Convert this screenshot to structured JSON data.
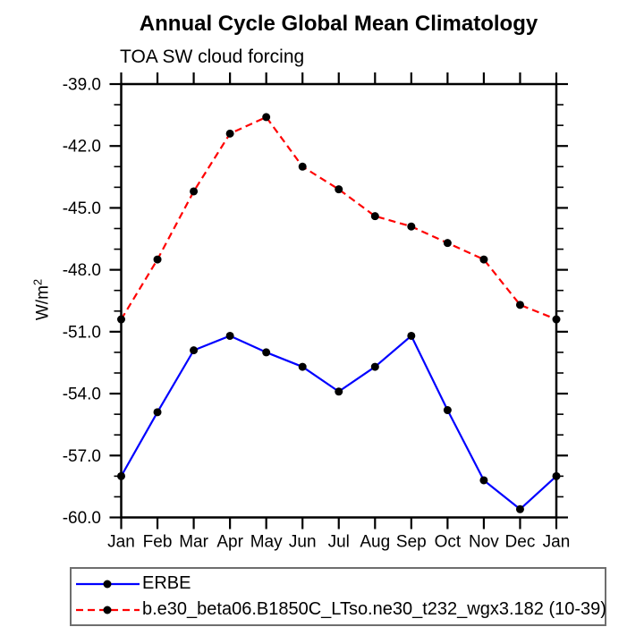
{
  "chart_data": {
    "type": "line",
    "title": "Annual Cycle Global Mean Climatology",
    "subtitle": "TOA SW cloud forcing",
    "ylabel": "W/m^2",
    "ylabel_parts": {
      "main": "W/m",
      "sup": "2"
    },
    "categories": [
      "Jan",
      "Feb",
      "Mar",
      "Apr",
      "May",
      "Jun",
      "Jul",
      "Aug",
      "Sep",
      "Oct",
      "Nov",
      "Dec",
      "Jan"
    ],
    "series": [
      {
        "name": "ERBE",
        "color": "#0000ff",
        "line_style": "solid",
        "marker": "filled-circle",
        "marker_color": "#000000",
        "values": [
          -58.0,
          -54.9,
          -51.9,
          -51.2,
          -52.0,
          -52.7,
          -53.9,
          -52.7,
          -51.2,
          -54.8,
          -58.2,
          -59.6,
          -58.0
        ]
      },
      {
        "name": "b.e30_beta06.B1850C_LTso.ne30_t232_wgx3.182 (10-39)",
        "color": "#ff0000",
        "line_style": "dashed",
        "marker": "filled-circle",
        "marker_color": "#000000",
        "values": [
          -50.4,
          -47.5,
          -44.2,
          -41.4,
          -40.6,
          -43.0,
          -44.1,
          -45.4,
          -45.9,
          -46.7,
          -47.5,
          -49.7,
          -50.4
        ]
      }
    ],
    "ylim": [
      -60.0,
      -39.0
    ],
    "y_major_ticks": [
      -39.0,
      -42.0,
      -45.0,
      -48.0,
      -51.0,
      -54.0,
      -57.0,
      -60.0
    ],
    "y_minor_step": 1.0,
    "y_tick_labels": [
      "-39.0",
      "-42.0",
      "-45.0",
      "-48.0",
      "-51.0",
      "-54.0",
      "-57.0",
      "-60.0"
    ],
    "grid": false,
    "axis_color": "#000000",
    "legend_position": "bottom-left-box"
  }
}
